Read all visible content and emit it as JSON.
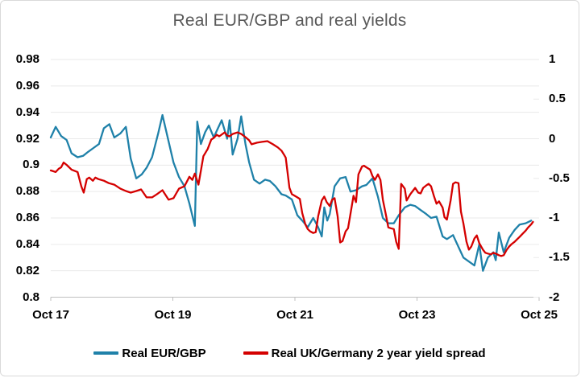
{
  "title": "Real EUR/GBP and real yields",
  "colors": {
    "blue": "#1F81A9",
    "red": "#D40000",
    "title_gray": "#595959",
    "grid": "#EAEAEA",
    "axis_line": "#BFBFBF",
    "border": "#D9D9D9",
    "text": "#000000"
  },
  "axes": {
    "left": {
      "tick_labels": [
        "0.98",
        "0.96",
        "0.94",
        "0.92",
        "0.9",
        "0.88",
        "0.86",
        "0.84",
        "0.82",
        "0.8"
      ]
    },
    "right": {
      "tick_labels": [
        "1",
        "0.5",
        "0",
        "-0.5",
        "-1",
        "-1.5",
        "-2"
      ]
    },
    "x": {
      "tick_labels": [
        "Oct 17",
        "Oct 19",
        "Oct 21",
        "Oct 23",
        "Oct 25"
      ]
    }
  },
  "legend": {
    "items": [
      {
        "id": "real-eur-gbp",
        "label": "Real EUR/GBP",
        "color": "#1F81A9"
      },
      {
        "id": "real-uk-germany-spread",
        "label": "Real UK/Germany 2 year yield spread",
        "color": "#D40000"
      }
    ]
  },
  "chart_data": {
    "type": "line",
    "title": "Real EUR/GBP and real yields",
    "xlabel": "",
    "x_unit": "days since Oct 17",
    "x_range": [
      0,
      8
    ],
    "x_tick_positions": [
      0,
      2,
      4,
      6,
      8
    ],
    "x_tick_labels": [
      "Oct 17",
      "Oct 19",
      "Oct 21",
      "Oct 23",
      "Oct 25"
    ],
    "left_ylim": [
      0.8,
      0.98
    ],
    "right_ylim": [
      -2,
      1
    ],
    "grid": true,
    "legend_position": "bottom",
    "series": [
      {
        "id": "real-eur-gbp",
        "name": "Real EUR/GBP",
        "axis": "left",
        "color": "#1F81A9",
        "points": [
          [
            0.0,
            0.921
          ],
          [
            0.08,
            0.929
          ],
          [
            0.17,
            0.922
          ],
          [
            0.26,
            0.919
          ],
          [
            0.34,
            0.909
          ],
          [
            0.44,
            0.906
          ],
          [
            0.53,
            0.907
          ],
          [
            0.61,
            0.91
          ],
          [
            0.7,
            0.913
          ],
          [
            0.79,
            0.916
          ],
          [
            0.87,
            0.928
          ],
          [
            0.96,
            0.931
          ],
          [
            1.04,
            0.921
          ],
          [
            1.14,
            0.924
          ],
          [
            1.23,
            0.929
          ],
          [
            1.31,
            0.905
          ],
          [
            1.4,
            0.89
          ],
          [
            1.49,
            0.893
          ],
          [
            1.57,
            0.898
          ],
          [
            1.66,
            0.906
          ],
          [
            1.76,
            0.924
          ],
          [
            1.83,
            0.938
          ],
          [
            1.93,
            0.918
          ],
          [
            2.01,
            0.902
          ],
          [
            2.1,
            0.891
          ],
          [
            2.19,
            0.884
          ],
          [
            2.27,
            0.871
          ],
          [
            2.36,
            0.854
          ],
          [
            2.4,
            0.933
          ],
          [
            2.46,
            0.916
          ],
          [
            2.53,
            0.925
          ],
          [
            2.59,
            0.93
          ],
          [
            2.67,
            0.921
          ],
          [
            2.72,
            0.926
          ],
          [
            2.8,
            0.934
          ],
          [
            2.89,
            0.92
          ],
          [
            2.93,
            0.934
          ],
          [
            2.98,
            0.908
          ],
          [
            3.06,
            0.92
          ],
          [
            3.12,
            0.937
          ],
          [
            3.19,
            0.916
          ],
          [
            3.25,
            0.902
          ],
          [
            3.33,
            0.889
          ],
          [
            3.42,
            0.886
          ],
          [
            3.51,
            0.889
          ],
          [
            3.59,
            0.888
          ],
          [
            3.68,
            0.884
          ],
          [
            3.78,
            0.878
          ],
          [
            3.85,
            0.877
          ],
          [
            3.95,
            0.874
          ],
          [
            4.04,
            0.862
          ],
          [
            4.12,
            0.858
          ],
          [
            4.21,
            0.853
          ],
          [
            4.3,
            0.86
          ],
          [
            4.38,
            0.853
          ],
          [
            4.44,
            0.846
          ],
          [
            4.48,
            0.868
          ],
          [
            4.53,
            0.858
          ],
          [
            4.57,
            0.863
          ],
          [
            4.65,
            0.884
          ],
          [
            4.74,
            0.89
          ],
          [
            4.83,
            0.891
          ],
          [
            4.91,
            0.88
          ],
          [
            5.0,
            0.881
          ],
          [
            5.1,
            0.884
          ],
          [
            5.17,
            0.885
          ],
          [
            5.27,
            0.89
          ],
          [
            5.36,
            0.876
          ],
          [
            5.44,
            0.86
          ],
          [
            5.53,
            0.856
          ],
          [
            5.62,
            0.856
          ],
          [
            5.7,
            0.862
          ],
          [
            5.8,
            0.868
          ],
          [
            5.89,
            0.87
          ],
          [
            5.97,
            0.869
          ],
          [
            6.06,
            0.866
          ],
          [
            6.15,
            0.863
          ],
          [
            6.23,
            0.86
          ],
          [
            6.32,
            0.861
          ],
          [
            6.42,
            0.846
          ],
          [
            6.49,
            0.844
          ],
          [
            6.59,
            0.847
          ],
          [
            6.68,
            0.838
          ],
          [
            6.76,
            0.83
          ],
          [
            6.85,
            0.827
          ],
          [
            6.94,
            0.824
          ],
          [
            7.02,
            0.84
          ],
          [
            7.08,
            0.82
          ],
          [
            7.16,
            0.83
          ],
          [
            7.25,
            0.834
          ],
          [
            7.29,
            0.828
          ],
          [
            7.34,
            0.849
          ],
          [
            7.42,
            0.834
          ],
          [
            7.51,
            0.845
          ],
          [
            7.6,
            0.851
          ],
          [
            7.68,
            0.855
          ],
          [
            7.78,
            0.856
          ],
          [
            7.87,
            0.858
          ]
        ]
      },
      {
        "id": "real-uk-germany-spread",
        "name": "Real UK/Germany 2 year yield spread",
        "axis": "right",
        "color": "#D40000",
        "points": [
          [
            0.0,
            -0.4
          ],
          [
            0.08,
            -0.42
          ],
          [
            0.13,
            -0.38
          ],
          [
            0.17,
            -0.36
          ],
          [
            0.21,
            -0.3
          ],
          [
            0.26,
            -0.33
          ],
          [
            0.34,
            -0.39
          ],
          [
            0.44,
            -0.42
          ],
          [
            0.5,
            -0.6
          ],
          [
            0.54,
            -0.68
          ],
          [
            0.59,
            -0.51
          ],
          [
            0.63,
            -0.49
          ],
          [
            0.69,
            -0.53
          ],
          [
            0.73,
            -0.49
          ],
          [
            0.78,
            -0.51
          ],
          [
            0.87,
            -0.53
          ],
          [
            0.95,
            -0.56
          ],
          [
            1.04,
            -0.58
          ],
          [
            1.14,
            -0.63
          ],
          [
            1.23,
            -0.66
          ],
          [
            1.31,
            -0.68
          ],
          [
            1.4,
            -0.66
          ],
          [
            1.48,
            -0.64
          ],
          [
            1.57,
            -0.74
          ],
          [
            1.66,
            -0.74
          ],
          [
            1.74,
            -0.7
          ],
          [
            1.83,
            -0.65
          ],
          [
            1.93,
            -0.77
          ],
          [
            2.01,
            -0.75
          ],
          [
            2.1,
            -0.63
          ],
          [
            2.19,
            -0.6
          ],
          [
            2.27,
            -0.48
          ],
          [
            2.32,
            -0.52
          ],
          [
            2.36,
            -0.44
          ],
          [
            2.42,
            -0.58
          ],
          [
            2.5,
            -0.22
          ],
          [
            2.57,
            -0.13
          ],
          [
            2.63,
            -0.01
          ],
          [
            2.67,
            0.01
          ],
          [
            2.72,
            0.05
          ],
          [
            2.76,
            0.03
          ],
          [
            2.85,
            0.08
          ],
          [
            2.89,
            0.04
          ],
          [
            2.93,
            0.03
          ],
          [
            2.98,
            0.06
          ],
          [
            3.06,
            0.08
          ],
          [
            3.12,
            0.06
          ],
          [
            3.19,
            0.02
          ],
          [
            3.25,
            -0.02
          ],
          [
            3.29,
            -0.07
          ],
          [
            3.38,
            -0.05
          ],
          [
            3.46,
            -0.04
          ],
          [
            3.55,
            -0.03
          ],
          [
            3.64,
            -0.07
          ],
          [
            3.72,
            -0.11
          ],
          [
            3.78,
            -0.15
          ],
          [
            3.82,
            -0.2
          ],
          [
            3.85,
            -0.24
          ],
          [
            3.91,
            -0.62
          ],
          [
            3.95,
            -0.7
          ],
          [
            4.04,
            -0.74
          ],
          [
            4.08,
            -0.76
          ],
          [
            4.12,
            -0.94
          ],
          [
            4.17,
            -1.08
          ],
          [
            4.21,
            -1.14
          ],
          [
            4.25,
            -1.17
          ],
          [
            4.3,
            -1.19
          ],
          [
            4.34,
            -1.18
          ],
          [
            4.38,
            -0.98
          ],
          [
            4.44,
            -0.78
          ],
          [
            4.48,
            -0.73
          ],
          [
            4.52,
            -0.8
          ],
          [
            4.57,
            -0.85
          ],
          [
            4.61,
            -0.77
          ],
          [
            4.65,
            -0.75
          ],
          [
            4.7,
            -0.98
          ],
          [
            4.74,
            -1.31
          ],
          [
            4.78,
            -1.29
          ],
          [
            4.83,
            -1.17
          ],
          [
            4.87,
            -1.13
          ],
          [
            4.91,
            -0.95
          ],
          [
            4.96,
            -0.72
          ],
          [
            5.0,
            -0.8
          ],
          [
            5.04,
            -0.45
          ],
          [
            5.1,
            -0.35
          ],
          [
            5.13,
            -0.34
          ],
          [
            5.17,
            -0.36
          ],
          [
            5.23,
            -0.39
          ],
          [
            5.27,
            -0.47
          ],
          [
            5.31,
            -0.52
          ],
          [
            5.36,
            -0.45
          ],
          [
            5.4,
            -0.52
          ],
          [
            5.44,
            -0.77
          ],
          [
            5.49,
            -0.96
          ],
          [
            5.53,
            -1.12
          ],
          [
            5.57,
            -1.13
          ],
          [
            5.62,
            -1.14
          ],
          [
            5.66,
            -1.3
          ],
          [
            5.7,
            -1.39
          ],
          [
            5.74,
            -0.57
          ],
          [
            5.8,
            -0.63
          ],
          [
            5.83,
            -0.78
          ],
          [
            5.89,
            -0.7
          ],
          [
            5.93,
            -0.66
          ],
          [
            5.97,
            -0.62
          ],
          [
            6.02,
            -0.68
          ],
          [
            6.06,
            -0.69
          ],
          [
            6.1,
            -0.62
          ],
          [
            6.15,
            -0.59
          ],
          [
            6.19,
            -0.57
          ],
          [
            6.23,
            -0.6
          ],
          [
            6.28,
            -0.73
          ],
          [
            6.32,
            -0.82
          ],
          [
            6.36,
            -0.79
          ],
          [
            6.42,
            -0.87
          ],
          [
            6.45,
            -0.99
          ],
          [
            6.49,
            -1.02
          ],
          [
            6.55,
            -0.78
          ],
          [
            6.59,
            -0.57
          ],
          [
            6.63,
            -0.55
          ],
          [
            6.68,
            -0.56
          ],
          [
            6.72,
            -0.92
          ],
          [
            6.76,
            -1.07
          ],
          [
            6.81,
            -1.3
          ],
          [
            6.85,
            -1.4
          ],
          [
            6.89,
            -1.36
          ],
          [
            6.94,
            -1.26
          ],
          [
            6.98,
            -1.22
          ],
          [
            7.02,
            -1.32
          ],
          [
            7.08,
            -1.4
          ],
          [
            7.12,
            -1.44
          ],
          [
            7.16,
            -1.45
          ],
          [
            7.21,
            -1.46
          ],
          [
            7.25,
            -1.44
          ],
          [
            7.29,
            -1.45
          ],
          [
            7.34,
            -1.47
          ],
          [
            7.38,
            -1.48
          ],
          [
            7.42,
            -1.47
          ],
          [
            7.47,
            -1.4
          ],
          [
            7.51,
            -1.36
          ],
          [
            7.55,
            -1.33
          ],
          [
            7.6,
            -1.3
          ],
          [
            7.64,
            -1.27
          ],
          [
            7.68,
            -1.24
          ],
          [
            7.73,
            -1.2
          ],
          [
            7.78,
            -1.16
          ],
          [
            7.82,
            -1.12
          ],
          [
            7.87,
            -1.08
          ],
          [
            7.9,
            -1.05
          ]
        ]
      }
    ]
  }
}
